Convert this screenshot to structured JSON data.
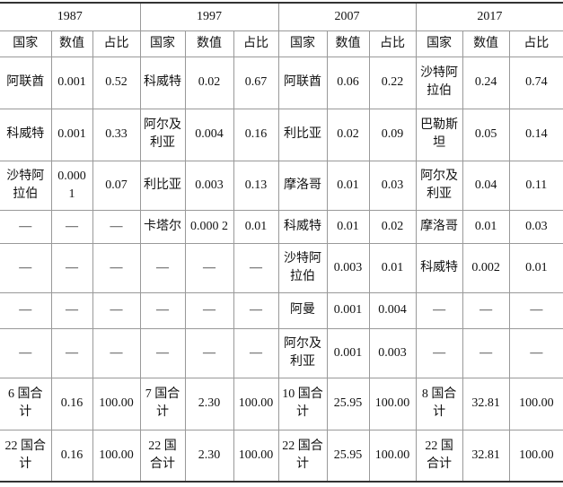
{
  "table": {
    "years": [
      "1987",
      "1997",
      "2007",
      "2017"
    ],
    "columns": [
      "国家",
      "数值",
      "占比",
      "国家",
      "数值",
      "占比",
      "国家",
      "数值",
      "占比",
      "国家",
      "数值",
      "占比"
    ],
    "rows": [
      [
        "阿联酋",
        "0.001",
        "0.52",
        "科威特",
        "0.02",
        "0.67",
        "阿联酋",
        "0.06",
        "0.22",
        "沙特阿拉伯",
        "0.24",
        "0.74"
      ],
      [
        "科威特",
        "0.001",
        "0.33",
        "阿尔及利亚",
        "0.004",
        "0.16",
        "利比亚",
        "0.02",
        "0.09",
        "巴勒斯坦",
        "0.05",
        "0.14"
      ],
      [
        "沙特阿拉伯",
        "0.000 1",
        "0.07",
        "利比亚",
        "0.003",
        "0.13",
        "摩洛哥",
        "0.01",
        "0.03",
        "阿尔及利亚",
        "0.04",
        "0.11"
      ],
      [
        "—",
        "—",
        "—",
        "卡塔尔",
        "0.000 2",
        "0.01",
        "科威特",
        "0.01",
        "0.02",
        "摩洛哥",
        "0.01",
        "0.03"
      ],
      [
        "—",
        "—",
        "—",
        "—",
        "—",
        "—",
        "沙特阿拉伯",
        "0.003",
        "0.01",
        "科威特",
        "0.002",
        "0.01"
      ],
      [
        "—",
        "—",
        "—",
        "—",
        "—",
        "—",
        "阿曼",
        "0.001",
        "0.004",
        "—",
        "—",
        "—"
      ],
      [
        "—",
        "—",
        "—",
        "—",
        "—",
        "—",
        "阿尔及利亚",
        "0.001",
        "0.003",
        "—",
        "—",
        "—"
      ],
      [
        "6 国合计",
        "0.16",
        "100.00",
        "7 国合计",
        "2.30",
        "100.00",
        "10 国合计",
        "25.95",
        "100.00",
        "8 国合计",
        "32.81",
        "100.00"
      ],
      [
        "22 国合计",
        "0.16",
        "100.00",
        "22 国合计",
        "2.30",
        "100.00",
        "22 国合计",
        "25.95",
        "100.00",
        "22 国合计",
        "32.81",
        "100.00"
      ]
    ]
  }
}
